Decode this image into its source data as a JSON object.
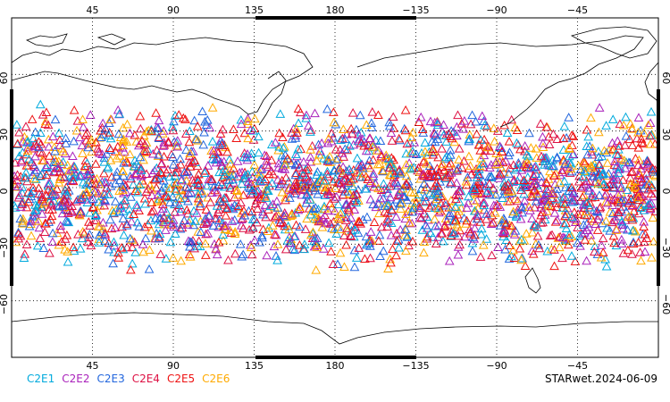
{
  "map": {
    "lon_ticks": [
      "45",
      "90",
      "135",
      "180",
      "−135",
      "−90",
      "−45"
    ],
    "lat_ticks": [
      "60",
      "30",
      "0",
      "−30",
      "−60"
    ],
    "lat_coverage": [
      -45,
      45
    ],
    "marker": "triangle-outline"
  },
  "legend": [
    {
      "label": "C2E1",
      "color": "#00aadd"
    },
    {
      "label": "C2E2",
      "color": "#aa22bb"
    },
    {
      "label": "C2E3",
      "color": "#2266dd"
    },
    {
      "label": "C2E4",
      "color": "#dd1144"
    },
    {
      "label": "C2E5",
      "color": "#ee1111"
    },
    {
      "label": "C2E6",
      "color": "#ffaa00"
    }
  ],
  "credit": "STARwet.2024-06-09"
}
